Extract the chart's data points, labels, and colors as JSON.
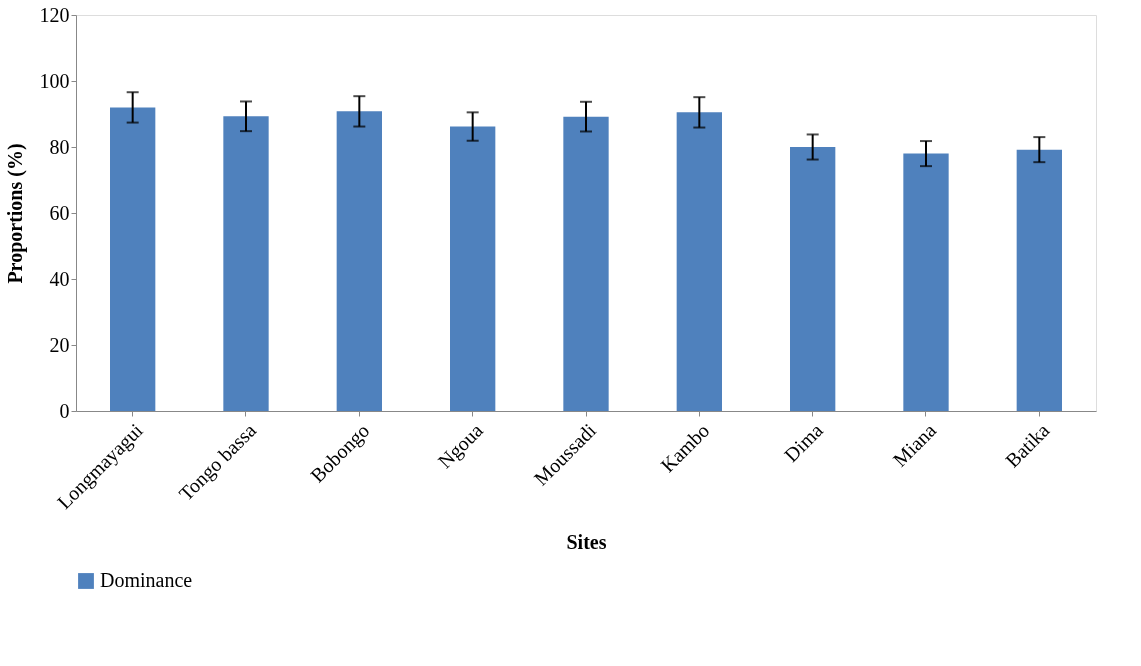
{
  "chart_data": {
    "type": "bar",
    "xlabel": "Sites",
    "ylabel": "Proportions (%)",
    "categories": [
      "Longmayagui",
      "Tongo bassa",
      "Bobongo",
      "Ngoua",
      "Moussadi",
      "Kambo",
      "Dima",
      "Miana",
      "Batika"
    ],
    "series": [
      {
        "name": "Dominance",
        "color": "#4f81bd",
        "values": [
          92,
          89.3,
          90.8,
          86.2,
          89.2,
          90.5,
          80,
          78,
          79.2
        ],
        "errors": [
          4.6,
          4.5,
          4.6,
          4.3,
          4.5,
          4.6,
          3.8,
          3.8,
          3.8
        ]
      }
    ],
    "ylim": [
      0,
      120
    ],
    "yticks": [
      0,
      20,
      40,
      60,
      80,
      100,
      120
    ],
    "grid": false,
    "legend": "bottom"
  }
}
